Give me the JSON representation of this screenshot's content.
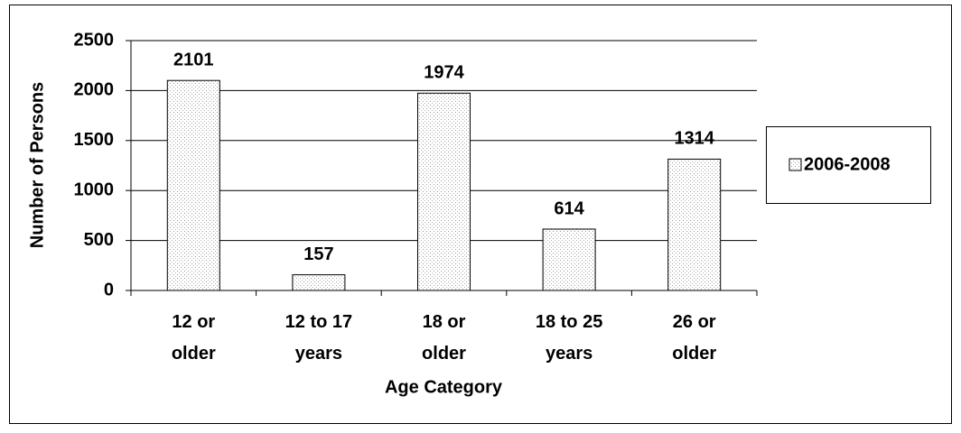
{
  "chart_data": {
    "type": "bar",
    "x_label": "Age Category",
    "y_label": "Number of Persons",
    "categories": [
      "12 or older",
      "12 to 17 years",
      "18 or older",
      "18 to 25 years",
      "26 or older"
    ],
    "series": [
      {
        "name": "2006-2008",
        "color": "#e0e0e0",
        "values": [
          2101,
          157,
          1974,
          614,
          1314
        ]
      }
    ],
    "ylim": [
      0,
      2500
    ],
    "yticks": [
      0,
      500,
      1000,
      1500,
      2000,
      2500
    ],
    "grid": true,
    "legend": "right"
  }
}
